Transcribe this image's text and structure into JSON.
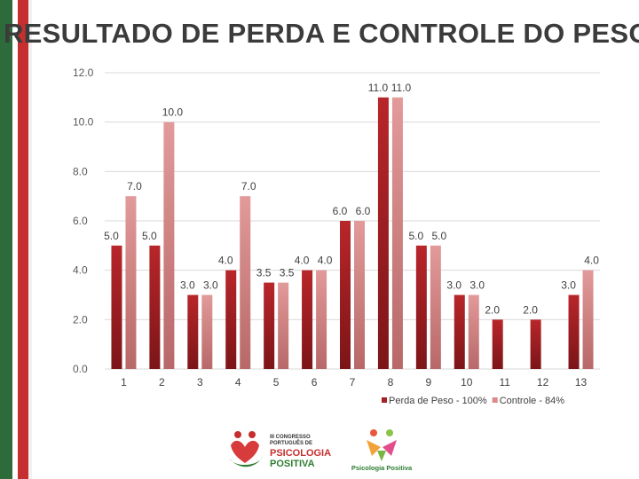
{
  "slide_title": "RESULTADO DE PERDA E CONTROLE DO PESO",
  "chart_data": {
    "type": "bar",
    "categories": [
      "1",
      "2",
      "3",
      "4",
      "5",
      "6",
      "7",
      "8",
      "9",
      "10",
      "11",
      "12",
      "13"
    ],
    "series": [
      {
        "name": "Perda de Peso - 100%",
        "color": "#a52024",
        "values": [
          5.0,
          5.0,
          3.0,
          4.0,
          3.5,
          4.0,
          6.0,
          11.0,
          5.0,
          3.0,
          2.0,
          2.0,
          3.0
        ],
        "labels": [
          "5.0",
          "5.0",
          "3.0",
          "4.0",
          "3.5",
          "4.0",
          "6.0",
          "11.0",
          "5.0",
          "3.0",
          "2.0",
          "2.0",
          "3.0"
        ]
      },
      {
        "name": "Controle - 84%",
        "color": "#d98a8a",
        "values": [
          7.0,
          10.0,
          3.0,
          7.0,
          3.5,
          4.0,
          6.0,
          11.0,
          5.0,
          3.0,
          null,
          null,
          4.0
        ],
        "labels": [
          "7.0",
          "10.0",
          "3.0",
          "7.0",
          "3.5",
          "4.0",
          "6.0",
          "11.0",
          "5.0",
          "3.0",
          null,
          null,
          "4.0"
        ]
      }
    ],
    "yticks": [
      "0.0",
      "2.0",
      "4.0",
      "6.0",
      "8.0",
      "10.0",
      "12.0"
    ],
    "ylim": [
      0,
      12
    ],
    "grid": true,
    "legend_position": "bottom"
  },
  "logos": {
    "congresso": {
      "line1": "III CONGRESSO",
      "line2": "PORTUGUÊS DE",
      "line3": "PSICOLOGIA",
      "line4": "POSITIVA"
    },
    "psicologia": {
      "line1": "Psicologia Positiva"
    }
  }
}
